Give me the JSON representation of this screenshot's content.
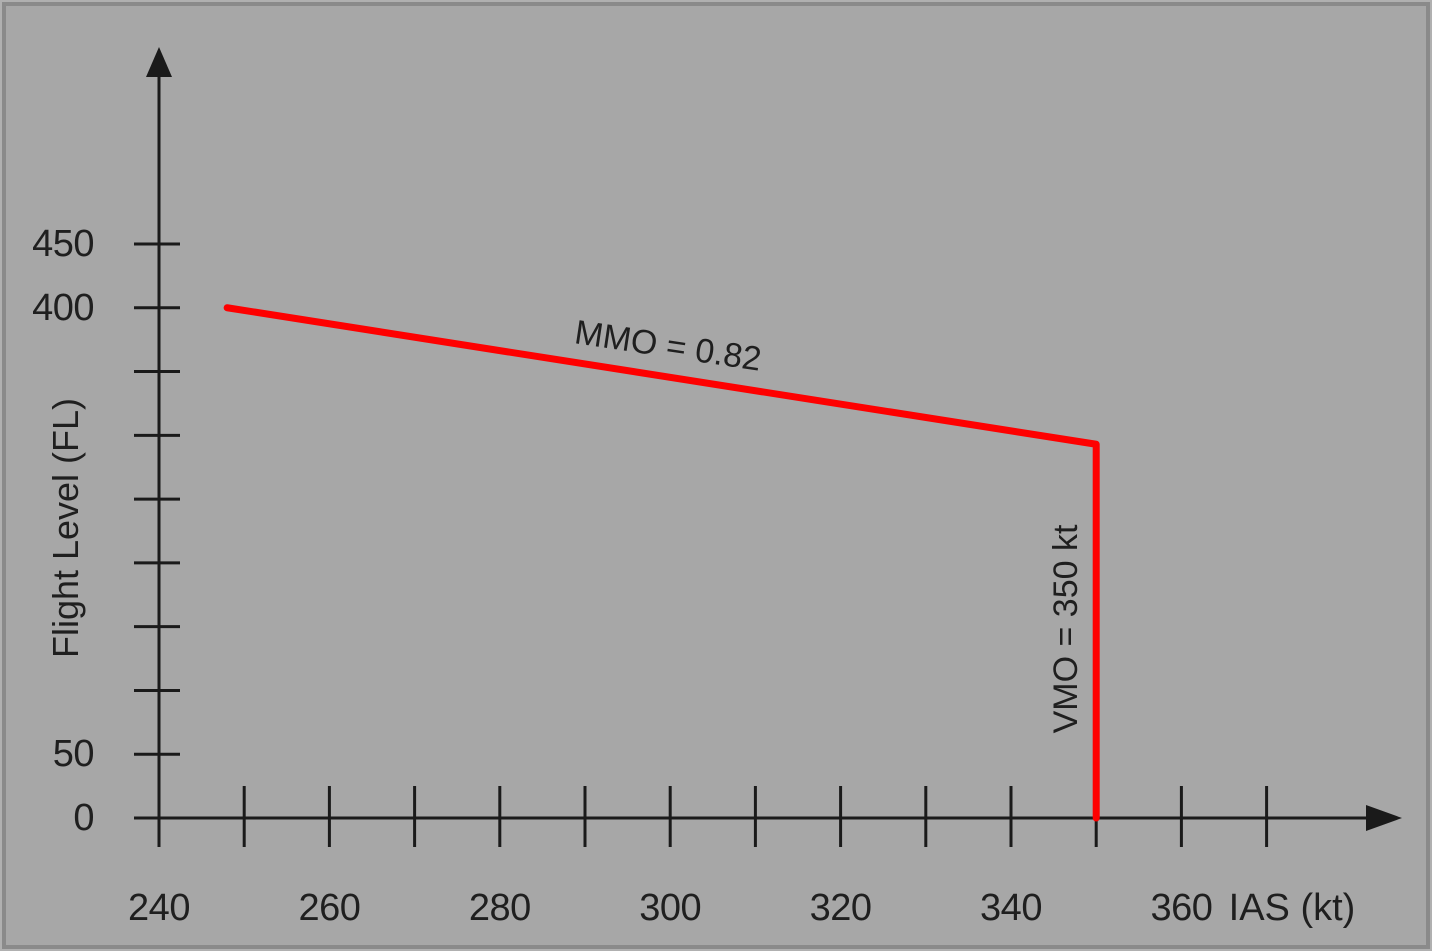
{
  "chart_data": {
    "type": "line",
    "title": "",
    "xlabel": "IAS (kt)",
    "ylabel": "Flight Level (FL)",
    "x_axis": {
      "unit": "kt",
      "min": 240,
      "max": 370,
      "tick_step": 10,
      "tick_marks": [
        250,
        260,
        270,
        280,
        290,
        300,
        310,
        320,
        330,
        340,
        350,
        360,
        370
      ],
      "label_values": [
        240,
        260,
        280,
        300,
        320,
        340,
        360
      ]
    },
    "y_axis": {
      "unit": "FL",
      "min": 0,
      "max": 470,
      "tick_step": 50,
      "tick_marks": [
        50,
        100,
        150,
        200,
        250,
        300,
        350,
        400,
        450
      ],
      "label_values": [
        450,
        400,
        50,
        0
      ]
    },
    "series": [
      {
        "name": "maximum-operating-speed-envelope",
        "color": "#fe0000",
        "points": [
          {
            "ias": 248,
            "fl": 400
          },
          {
            "ias": 350,
            "fl": 293
          },
          {
            "ias": 350,
            "fl": 0
          }
        ]
      }
    ],
    "annotations": [
      {
        "name": "mmo-limit",
        "text": "MMO = 0.82"
      },
      {
        "name": "vmo-limit",
        "text": "VMO = 350 kt"
      }
    ],
    "legend": "none",
    "grid": false
  },
  "colors": {
    "background": "#a7a7a7",
    "frame": "#8a8a8a",
    "axis": "#1a1a1a",
    "text": "#1f1f1f",
    "envelope_red": "#fe0000"
  }
}
